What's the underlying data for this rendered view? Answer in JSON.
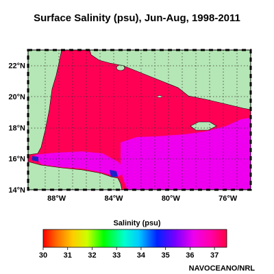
{
  "chart_data": {
    "type": "heatmap",
    "title": "Surface Salinity (psu), Jun-Aug, 1998-2011",
    "lat_ticks": [
      {
        "value": 22,
        "label": "22°N"
      },
      {
        "value": 20,
        "label": "20°N"
      },
      {
        "value": 18,
        "label": "18°N"
      },
      {
        "value": 16,
        "label": "16°N"
      },
      {
        "value": 14,
        "label": "14°N"
      }
    ],
    "lon_ticks": [
      {
        "value": -88,
        "label": "88°W"
      },
      {
        "value": -84,
        "label": "84°W"
      },
      {
        "value": -80,
        "label": "80°W"
      },
      {
        "value": -76,
        "label": "76°W"
      }
    ],
    "lon_range": [
      -90.0,
      -74.4
    ],
    "lat_range": [
      14.0,
      23.0
    ],
    "grid": true,
    "colors": {
      "ocean_high": "#ff0055",
      "ocean_mid": "#ee00ee",
      "ocean_low": "#1a20cc",
      "land": "#b5e6b5"
    },
    "colorbar": {
      "title": "Salinity (psu)",
      "min": 30,
      "max": 37.5,
      "ticks": [
        30,
        31,
        32,
        33,
        34,
        35,
        36,
        37
      ]
    },
    "credit": "NAVOCEANO/NRL"
  }
}
